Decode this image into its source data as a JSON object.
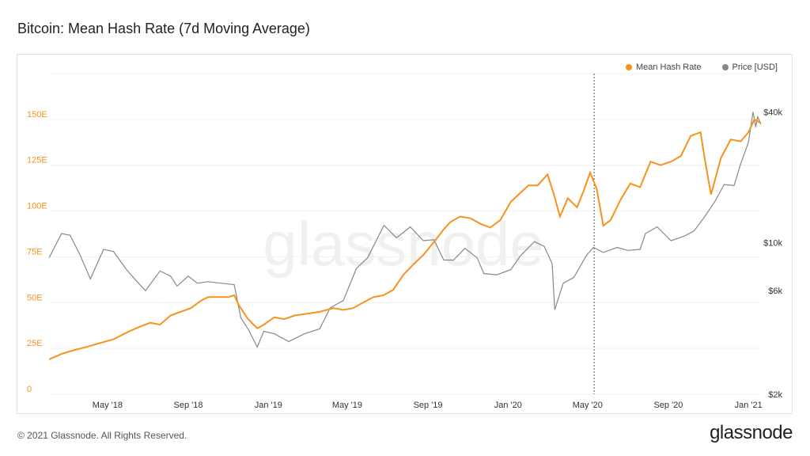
{
  "page": {
    "title": "Bitcoin: Mean Hash Rate (7d Moving Average)",
    "copyright": "© 2021 Glassnode. All Rights Reserved.",
    "logo": "glassnode",
    "watermark": "glassnode"
  },
  "colors": {
    "hash_rate": "#f7931a",
    "price": "#888888",
    "left_axis": "#f7931a",
    "right_axis": "#333333",
    "grid": "#f0f0f0"
  },
  "chart_data": {
    "type": "line",
    "title": "Bitcoin: Mean Hash Rate (7d Moving Average)",
    "legend": [
      "Mean Hash Rate",
      "Price [USD]"
    ],
    "legend_position": "top-right",
    "x_range": [
      "2018-02-01",
      "2021-01-20"
    ],
    "x_tick_labels": [
      "May '18",
      "Sep '18",
      "Jan '19",
      "May '19",
      "Sep '19",
      "Jan '20",
      "May '20",
      "Sep '20",
      "Jan '21"
    ],
    "x_tick_dates": [
      "2018-05-01",
      "2018-09-01",
      "2019-01-01",
      "2019-05-01",
      "2019-09-01",
      "2020-01-01",
      "2020-05-01",
      "2020-09-01",
      "2021-01-01"
    ],
    "y_left": {
      "label": "",
      "ticks": [
        "0",
        "25E",
        "50E",
        "75E",
        "100E",
        "125E",
        "150E"
      ],
      "tick_values": [
        0,
        25,
        50,
        75,
        100,
        125,
        150
      ],
      "range": [
        0,
        175
      ]
    },
    "y_right": {
      "label": "",
      "scale": "log",
      "ticks": [
        "$2k",
        "$6k",
        "$10k",
        "$40k"
      ],
      "tick_values": [
        2000,
        6000,
        10000,
        40000
      ],
      "range": [
        2000,
        60000
      ]
    },
    "vertical_marker": "2020-05-11",
    "series": [
      {
        "name": "Mean Hash Rate",
        "axis": "left",
        "points": [
          [
            "2018-02-01",
            19
          ],
          [
            "2018-02-20",
            22
          ],
          [
            "2018-03-10",
            24
          ],
          [
            "2018-04-01",
            26
          ],
          [
            "2018-04-20",
            28
          ],
          [
            "2018-05-10",
            30
          ],
          [
            "2018-06-01",
            34
          ],
          [
            "2018-06-20",
            37
          ],
          [
            "2018-07-05",
            39
          ],
          [
            "2018-07-20",
            38
          ],
          [
            "2018-08-05",
            43
          ],
          [
            "2018-08-20",
            45
          ],
          [
            "2018-09-05",
            47
          ],
          [
            "2018-09-20",
            51
          ],
          [
            "2018-10-01",
            53
          ],
          [
            "2018-10-15",
            53
          ],
          [
            "2018-11-01",
            53
          ],
          [
            "2018-11-10",
            54
          ],
          [
            "2018-11-18",
            48
          ],
          [
            "2018-12-01",
            41
          ],
          [
            "2018-12-15",
            36
          ],
          [
            "2018-12-25",
            38
          ],
          [
            "2019-01-10",
            42
          ],
          [
            "2019-01-25",
            41
          ],
          [
            "2019-02-10",
            43
          ],
          [
            "2019-03-01",
            44
          ],
          [
            "2019-03-20",
            45
          ],
          [
            "2019-04-10",
            47
          ],
          [
            "2019-04-25",
            46
          ],
          [
            "2019-05-10",
            47
          ],
          [
            "2019-05-25",
            50
          ],
          [
            "2019-06-10",
            53
          ],
          [
            "2019-06-25",
            54
          ],
          [
            "2019-07-10",
            57
          ],
          [
            "2019-07-25",
            65
          ],
          [
            "2019-08-10",
            71
          ],
          [
            "2019-08-25",
            76
          ],
          [
            "2019-09-10",
            83
          ],
          [
            "2019-09-25",
            90
          ],
          [
            "2019-10-05",
            94
          ],
          [
            "2019-10-20",
            97
          ],
          [
            "2019-11-05",
            96
          ],
          [
            "2019-11-20",
            93
          ],
          [
            "2019-12-05",
            91
          ],
          [
            "2019-12-20",
            95
          ],
          [
            "2020-01-05",
            105
          ],
          [
            "2020-01-20",
            110
          ],
          [
            "2020-02-01",
            114
          ],
          [
            "2020-02-15",
            114
          ],
          [
            "2020-03-01",
            120
          ],
          [
            "2020-03-10",
            110
          ],
          [
            "2020-03-20",
            97
          ],
          [
            "2020-04-01",
            107
          ],
          [
            "2020-04-15",
            102
          ],
          [
            "2020-04-25",
            111
          ],
          [
            "2020-05-05",
            121
          ],
          [
            "2020-05-15",
            112
          ],
          [
            "2020-05-25",
            92
          ],
          [
            "2020-06-05",
            95
          ],
          [
            "2020-06-20",
            106
          ],
          [
            "2020-07-05",
            115
          ],
          [
            "2020-07-20",
            113
          ],
          [
            "2020-08-05",
            127
          ],
          [
            "2020-08-20",
            125
          ],
          [
            "2020-09-05",
            127
          ],
          [
            "2020-09-20",
            130
          ],
          [
            "2020-10-05",
            141
          ],
          [
            "2020-10-20",
            143
          ],
          [
            "2020-10-28",
            125
          ],
          [
            "2020-11-05",
            109
          ],
          [
            "2020-11-20",
            129
          ],
          [
            "2020-12-05",
            139
          ],
          [
            "2020-12-20",
            138
          ],
          [
            "2021-01-01",
            143
          ],
          [
            "2021-01-10",
            150
          ],
          [
            "2021-01-20",
            148
          ]
        ]
      },
      {
        "name": "Price [USD]",
        "axis": "right",
        "points": [
          [
            "2018-02-01",
            8500
          ],
          [
            "2018-02-20",
            11000
          ],
          [
            "2018-03-05",
            10800
          ],
          [
            "2018-03-20",
            8800
          ],
          [
            "2018-04-05",
            6800
          ],
          [
            "2018-04-25",
            9300
          ],
          [
            "2018-05-10",
            9100
          ],
          [
            "2018-05-30",
            7500
          ],
          [
            "2018-06-15",
            6600
          ],
          [
            "2018-06-28",
            6000
          ],
          [
            "2018-07-20",
            7400
          ],
          [
            "2018-08-05",
            7000
          ],
          [
            "2018-08-15",
            6300
          ],
          [
            "2018-09-01",
            7000
          ],
          [
            "2018-09-15",
            6500
          ],
          [
            "2018-10-01",
            6600
          ],
          [
            "2018-10-20",
            6500
          ],
          [
            "2018-11-10",
            6400
          ],
          [
            "2018-11-20",
            4500
          ],
          [
            "2018-12-01",
            4000
          ],
          [
            "2018-12-15",
            3300
          ],
          [
            "2018-12-25",
            3900
          ],
          [
            "2019-01-10",
            3800
          ],
          [
            "2019-02-01",
            3500
          ],
          [
            "2019-02-25",
            3800
          ],
          [
            "2019-03-20",
            4000
          ],
          [
            "2019-04-05",
            5000
          ],
          [
            "2019-04-25",
            5400
          ],
          [
            "2019-05-15",
            7600
          ],
          [
            "2019-06-01",
            8500
          ],
          [
            "2019-06-26",
            12000
          ],
          [
            "2019-07-15",
            10500
          ],
          [
            "2019-08-05",
            11800
          ],
          [
            "2019-08-25",
            10200
          ],
          [
            "2019-09-10",
            10300
          ],
          [
            "2019-09-25",
            8300
          ],
          [
            "2019-10-10",
            8300
          ],
          [
            "2019-10-27",
            9400
          ],
          [
            "2019-11-15",
            8500
          ],
          [
            "2019-11-25",
            7200
          ],
          [
            "2019-12-15",
            7100
          ],
          [
            "2020-01-05",
            7500
          ],
          [
            "2020-01-20",
            8700
          ],
          [
            "2020-02-10",
            10100
          ],
          [
            "2020-02-25",
            9600
          ],
          [
            "2020-03-08",
            8000
          ],
          [
            "2020-03-12",
            4900
          ],
          [
            "2020-03-25",
            6500
          ],
          [
            "2020-04-10",
            6900
          ],
          [
            "2020-04-29",
            8700
          ],
          [
            "2020-05-10",
            9500
          ],
          [
            "2020-05-25",
            9000
          ],
          [
            "2020-06-15",
            9500
          ],
          [
            "2020-07-01",
            9200
          ],
          [
            "2020-07-20",
            9300
          ],
          [
            "2020-07-28",
            11000
          ],
          [
            "2020-08-15",
            11800
          ],
          [
            "2020-09-05",
            10200
          ],
          [
            "2020-09-25",
            10700
          ],
          [
            "2020-10-10",
            11300
          ],
          [
            "2020-10-25",
            13000
          ],
          [
            "2020-11-10",
            15300
          ],
          [
            "2020-11-25",
            18500
          ],
          [
            "2020-12-10",
            18300
          ],
          [
            "2020-12-20",
            23000
          ],
          [
            "2021-01-01",
            29000
          ],
          [
            "2021-01-08",
            40000
          ],
          [
            "2021-01-12",
            34000
          ],
          [
            "2021-01-15",
            38000
          ],
          [
            "2021-01-20",
            35000
          ]
        ]
      }
    ]
  }
}
